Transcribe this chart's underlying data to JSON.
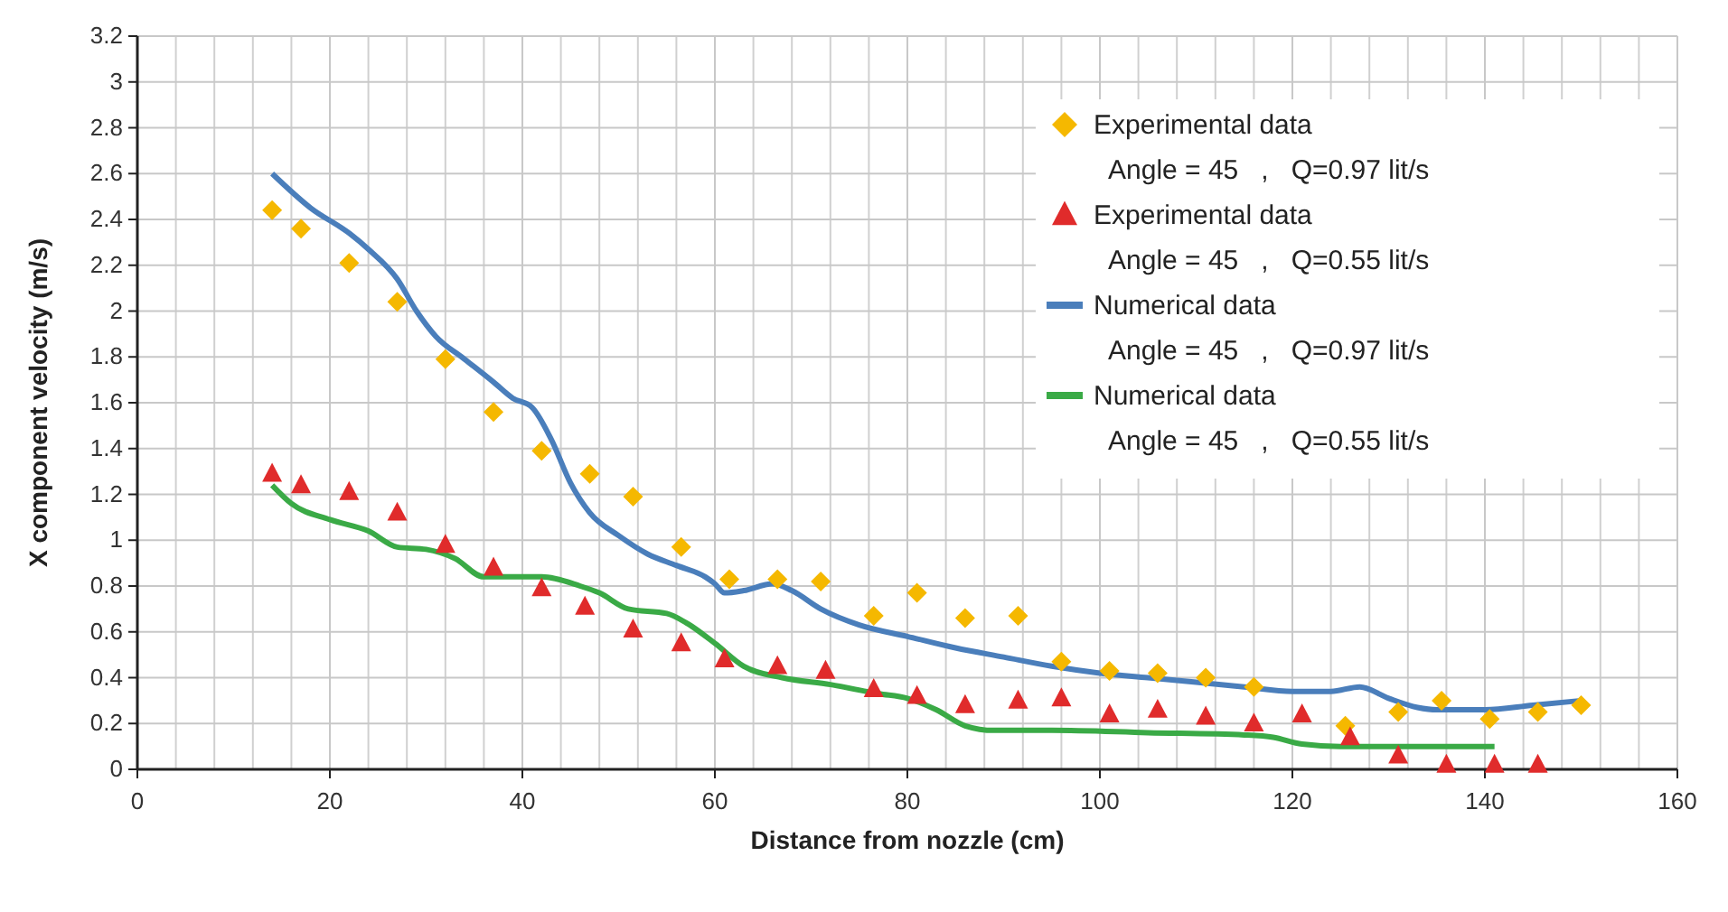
{
  "chart_data": {
    "type": "scatter",
    "xlabel": "Distance from nozzle (cm)",
    "ylabel": "X component velocity  (m/s)",
    "xlim": [
      0,
      160
    ],
    "xticks": [
      0,
      20,
      40,
      60,
      80,
      100,
      120,
      140,
      160
    ],
    "ylim": [
      0,
      3.2
    ],
    "yticks": [
      0,
      0.2,
      0.4,
      0.6,
      0.8,
      1,
      1.2,
      1.4,
      1.6,
      1.8,
      2,
      2.2,
      2.4,
      2.6,
      2.8,
      3,
      3.2
    ],
    "grid": true,
    "legend": "top right",
    "series": [
      {
        "name": "Experimental data\nAngle = 45   ,   Q=0.97 lit/s",
        "marker": "diamond",
        "color": "#f5b800",
        "x": [
          14,
          17,
          22,
          27,
          32,
          37,
          42,
          47,
          51.5,
          56.5,
          61.5,
          66.5,
          71,
          76.5,
          81,
          86,
          91.5,
          96,
          101,
          106,
          111,
          116,
          125.5,
          131,
          135.5,
          140.5,
          145.5,
          150
        ],
        "values": [
          2.44,
          2.36,
          2.21,
          2.04,
          1.79,
          1.56,
          1.39,
          1.29,
          1.19,
          0.97,
          0.83,
          0.83,
          0.82,
          0.67,
          0.77,
          0.66,
          0.67,
          0.47,
          0.43,
          0.42,
          0.4,
          0.36,
          0.19,
          0.25,
          0.3,
          0.22,
          0.25,
          0.28
        ]
      },
      {
        "name": "Experimental data\nAngle = 45   ,   Q=0.55 lit/s",
        "marker": "triangle",
        "color": "#e02b2b",
        "x": [
          14,
          17,
          22,
          27,
          32,
          37,
          42,
          46.5,
          51.5,
          56.5,
          61,
          66.5,
          71.5,
          76.5,
          81,
          86,
          91.5,
          96,
          101,
          106,
          111,
          116,
          121,
          126,
          131,
          136,
          141,
          145.5
        ],
        "values": [
          1.29,
          1.24,
          1.21,
          1.12,
          0.98,
          0.88,
          0.79,
          0.71,
          0.61,
          0.55,
          0.48,
          0.45,
          0.43,
          0.35,
          0.32,
          0.28,
          0.3,
          0.31,
          0.24,
          0.26,
          0.23,
          0.2,
          0.24,
          0.14,
          0.06,
          0.02,
          0.02,
          0.02
        ]
      },
      {
        "name": "Numerical data\nAngle = 45   ,   Q=0.97 lit/s",
        "type": "line",
        "marker": "none",
        "color": "#4a7ebb",
        "x": [
          14,
          18,
          22,
          24,
          27,
          29,
          31,
          34,
          37,
          39,
          41,
          43,
          45,
          47,
          50,
          53,
          56,
          59,
          60,
          61,
          63,
          66,
          68,
          71,
          75,
          80,
          85,
          90,
          95,
          100,
          105,
          110,
          115,
          120,
          124,
          127,
          130,
          133,
          135,
          140,
          145,
          150
        ],
        "values": [
          2.6,
          2.45,
          2.34,
          2.27,
          2.14,
          2,
          1.89,
          1.79,
          1.69,
          1.62,
          1.58,
          1.44,
          1.25,
          1.12,
          1.02,
          0.94,
          0.89,
          0.84,
          0.81,
          0.77,
          0.78,
          0.81,
          0.78,
          0.7,
          0.63,
          0.58,
          0.53,
          0.49,
          0.45,
          0.42,
          0.4,
          0.38,
          0.36,
          0.34,
          0.34,
          0.36,
          0.31,
          0.27,
          0.26,
          0.26,
          0.28,
          0.3
        ]
      },
      {
        "name": "Numerical data\nAngle = 45   ,   Q=0.55 lit/s",
        "type": "line",
        "marker": "none",
        "color": "#3aaa46",
        "x": [
          14,
          16,
          20,
          24,
          27,
          30,
          33,
          36,
          40,
          42,
          46,
          48,
          51,
          55,
          57,
          60,
          63,
          67,
          72,
          77,
          80,
          83,
          86,
          89,
          95,
          105,
          115,
          118,
          121,
          125,
          130,
          141
        ],
        "values": [
          1.24,
          1.16,
          1.09,
          1.04,
          0.97,
          0.96,
          0.92,
          0.84,
          0.84,
          0.84,
          0.8,
          0.77,
          0.7,
          0.68,
          0.64,
          0.55,
          0.45,
          0.4,
          0.37,
          0.33,
          0.31,
          0.26,
          0.19,
          0.17,
          0.17,
          0.16,
          0.15,
          0.14,
          0.11,
          0.1,
          0.1,
          0.1
        ]
      }
    ]
  }
}
